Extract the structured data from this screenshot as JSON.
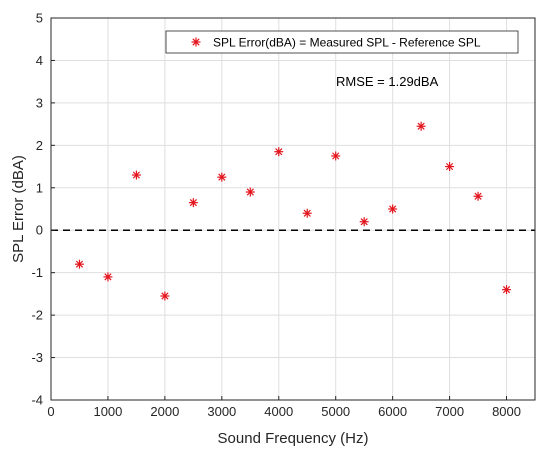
{
  "chart_data": {
    "type": "scatter",
    "title": "",
    "xlabel": "Sound Frequency (Hz)",
    "ylabel": "SPL Error (dBA)",
    "xlim": [
      0,
      8500
    ],
    "ylim": [
      -4,
      5
    ],
    "x_ticks": [
      "0",
      "1000",
      "2000",
      "3000",
      "4000",
      "5000",
      "6000",
      "7000",
      "8000"
    ],
    "y_ticks": [
      "5",
      "4",
      "3",
      "2",
      "1",
      "0",
      "-1",
      "-2",
      "-3",
      "-4"
    ],
    "grid": true,
    "legend_position": "top-right",
    "reference_line": {
      "y": 0,
      "style": "dashed",
      "color": "#000000"
    },
    "annotation": "RMSE = 1.29dBA",
    "series": [
      {
        "name": "SPL Error(dBA) = Measured SPL - Reference SPL",
        "marker": "asterisk",
        "color": "#e3141c",
        "x": [
          500,
          1000,
          1500,
          2000,
          2500,
          3000,
          3500,
          4000,
          4500,
          5000,
          5500,
          6000,
          6500,
          7000,
          7500,
          8000
        ],
        "y": [
          -0.8,
          -1.1,
          1.3,
          -1.55,
          0.65,
          1.25,
          0.9,
          1.85,
          0.4,
          1.75,
          0.2,
          0.5,
          2.45,
          1.5,
          0.8,
          -1.4
        ]
      }
    ]
  }
}
